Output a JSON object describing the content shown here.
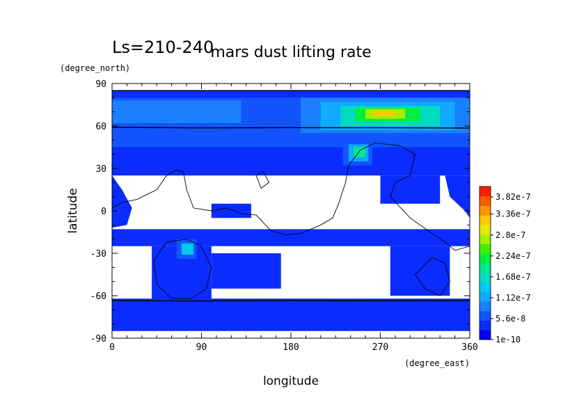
{
  "header": {
    "season": "Ls=210-240",
    "title": "mars dust lifting rate"
  },
  "chart_data": {
    "type": "heatmap",
    "title": "mars dust lifting rate",
    "subtitle": "Ls=210-240",
    "xlabel": "longitude",
    "ylabel": "latitude",
    "x_units": "(degree_east)",
    "y_units": "(degree_north)",
    "xlim": [
      0,
      360
    ],
    "ylim": [
      -90,
      90
    ],
    "x_ticks": [
      0,
      90,
      180,
      270,
      360
    ],
    "y_ticks": [
      -90,
      -60,
      -30,
      0,
      30,
      60,
      90
    ],
    "colorbar": {
      "labels": [
        "1e-10",
        "5.6e-8",
        "1.12e-7",
        "1.68e-7",
        "2.24e-7",
        "2.8e-7",
        "3.36e-7",
        "3.82e-7"
      ],
      "label_values": [
        1e-10,
        5.6e-08,
        1.12e-07,
        1.68e-07,
        2.24e-07,
        2.8e-07,
        3.36e-07,
        3.82e-07
      ],
      "colors": [
        "#0000ff",
        "#0a2cff",
        "#1255ff",
        "#1a80ff",
        "#10aaff",
        "#00c8f0",
        "#00dcc0",
        "#00e890",
        "#00ee40",
        "#44f000",
        "#a0f000",
        "#e8e800",
        "#ffc800",
        "#ff9600",
        "#ff5a00",
        "#ff1e00"
      ],
      "min": 1e-10,
      "max": 4.1e-07
    },
    "regions": [
      {
        "level": 1,
        "polygon": [
          [
            0,
            85
          ],
          [
            360,
            85
          ],
          [
            360,
            25
          ],
          [
            0,
            25
          ]
        ]
      },
      {
        "level": 1,
        "polygon": [
          [
            0,
            -13
          ],
          [
            360,
            -13
          ],
          [
            360,
            -25
          ],
          [
            0,
            -25
          ]
        ]
      },
      {
        "level": 1,
        "polygon": [
          [
            0,
            -62
          ],
          [
            360,
            -62
          ],
          [
            360,
            -85
          ],
          [
            0,
            -85
          ]
        ]
      },
      {
        "level": 1,
        "polygon": [
          [
            0,
            25
          ],
          [
            10,
            15
          ],
          [
            20,
            2
          ],
          [
            15,
            -10
          ],
          [
            0,
            -12
          ]
        ]
      },
      {
        "level": 1,
        "polygon": [
          [
            40,
            -25
          ],
          [
            100,
            -25
          ],
          [
            100,
            -65
          ],
          [
            40,
            -65
          ]
        ]
      },
      {
        "level": 1,
        "polygon": [
          [
            100,
            -30
          ],
          [
            170,
            -30
          ],
          [
            170,
            -55
          ],
          [
            100,
            -55
          ]
        ]
      },
      {
        "level": 1,
        "polygon": [
          [
            280,
            -25
          ],
          [
            340,
            -25
          ],
          [
            340,
            -60
          ],
          [
            280,
            -60
          ]
        ]
      },
      {
        "level": 1,
        "polygon": [
          [
            100,
            5
          ],
          [
            140,
            5
          ],
          [
            140,
            -5
          ],
          [
            100,
            -5
          ]
        ]
      },
      {
        "level": 1,
        "polygon": [
          [
            270,
            25
          ],
          [
            330,
            25
          ],
          [
            330,
            5
          ],
          [
            270,
            5
          ]
        ]
      },
      {
        "level": 1,
        "polygon": [
          [
            360,
            25
          ],
          [
            335,
            25
          ],
          [
            340,
            10
          ],
          [
            355,
            0
          ],
          [
            360,
            -5
          ]
        ]
      },
      {
        "level": 2,
        "polygon": [
          [
            0,
            80
          ],
          [
            360,
            80
          ],
          [
            360,
            45
          ],
          [
            0,
            45
          ]
        ]
      },
      {
        "level": 3,
        "polygon": [
          [
            0,
            78
          ],
          [
            130,
            78
          ],
          [
            130,
            62
          ],
          [
            0,
            62
          ]
        ]
      },
      {
        "level": 3,
        "polygon": [
          [
            190,
            80
          ],
          [
            360,
            80
          ],
          [
            360,
            55
          ],
          [
            190,
            55
          ]
        ]
      },
      {
        "level": 4,
        "polygon": [
          [
            210,
            77
          ],
          [
            345,
            77
          ],
          [
            345,
            57
          ],
          [
            210,
            57
          ]
        ]
      },
      {
        "level": 6,
        "polygon": [
          [
            230,
            74
          ],
          [
            330,
            74
          ],
          [
            330,
            60
          ],
          [
            230,
            60
          ]
        ]
      },
      {
        "level": 8,
        "polygon": [
          [
            245,
            73
          ],
          [
            310,
            73
          ],
          [
            310,
            63
          ],
          [
            245,
            63
          ]
        ]
      },
      {
        "level": 10,
        "polygon": [
          [
            255,
            72
          ],
          [
            295,
            72
          ],
          [
            295,
            65
          ],
          [
            255,
            65
          ]
        ]
      },
      {
        "level": 12,
        "polygon": [
          [
            262,
            71
          ],
          [
            285,
            71
          ],
          [
            285,
            67
          ],
          [
            262,
            67
          ]
        ]
      },
      {
        "level": 2,
        "polygon": [
          [
            232,
            50
          ],
          [
            262,
            50
          ],
          [
            262,
            32
          ],
          [
            232,
            32
          ]
        ]
      },
      {
        "level": 4,
        "polygon": [
          [
            238,
            47
          ],
          [
            258,
            47
          ],
          [
            258,
            35
          ],
          [
            238,
            35
          ]
        ]
      },
      {
        "level": 7,
        "polygon": [
          [
            243,
            45
          ],
          [
            255,
            45
          ],
          [
            255,
            38
          ],
          [
            243,
            38
          ]
        ]
      },
      {
        "level": 2,
        "polygon": [
          [
            65,
            -20
          ],
          [
            85,
            -20
          ],
          [
            85,
            -34
          ],
          [
            65,
            -34
          ]
        ]
      },
      {
        "level": 5,
        "polygon": [
          [
            70,
            -23
          ],
          [
            82,
            -23
          ],
          [
            82,
            -31
          ],
          [
            70,
            -31
          ]
        ]
      }
    ],
    "contours": [
      {
        "points": [
          [
            0,
            59
          ],
          [
            90,
            58.6
          ],
          [
            180,
            58.8
          ],
          [
            270,
            58.7
          ],
          [
            360,
            58.5
          ]
        ]
      },
      {
        "points": [
          [
            0,
            -63.5
          ],
          [
            90,
            -63.7
          ],
          [
            180,
            -63.5
          ],
          [
            270,
            -63.6
          ],
          [
            360,
            -63.5
          ]
        ]
      },
      {
        "points": [
          [
            0,
            85
          ],
          [
            360,
            85
          ]
        ]
      },
      {
        "points": [
          [
            0,
            2
          ],
          [
            10,
            6
          ],
          [
            25,
            8
          ],
          [
            45,
            15
          ],
          [
            55,
            25
          ],
          [
            65,
            29
          ],
          [
            72,
            27
          ],
          [
            75,
            15
          ],
          [
            82,
            2
          ],
          [
            100,
            0
          ],
          [
            115,
            2
          ],
          [
            130,
            -2
          ],
          [
            145,
            -3
          ],
          [
            160,
            -14
          ],
          [
            175,
            -17
          ],
          [
            190,
            -16
          ],
          [
            210,
            -10
          ],
          [
            222,
            -5
          ],
          [
            228,
            5
          ],
          [
            235,
            20
          ],
          [
            238,
            32
          ],
          [
            250,
            43
          ],
          [
            265,
            48
          ],
          [
            290,
            46
          ],
          [
            305,
            40
          ],
          [
            300,
            25
          ],
          [
            285,
            20
          ],
          [
            280,
            10
          ],
          [
            300,
            -5
          ],
          [
            320,
            -15
          ],
          [
            335,
            -22
          ],
          [
            345,
            -28
          ],
          [
            360,
            -25
          ]
        ]
      },
      {
        "points": [
          [
            75,
            -20
          ],
          [
            90,
            -25
          ],
          [
            100,
            -40
          ],
          [
            95,
            -55
          ],
          [
            80,
            -62
          ],
          [
            60,
            -62
          ],
          [
            45,
            -52
          ],
          [
            42,
            -35
          ],
          [
            55,
            -22
          ],
          [
            75,
            -20
          ]
        ]
      },
      {
        "points": [
          [
            305,
            -45
          ],
          [
            315,
            -55
          ],
          [
            330,
            -60
          ],
          [
            340,
            -50
          ],
          [
            335,
            -37
          ],
          [
            322,
            -33
          ],
          [
            305,
            -45
          ]
        ]
      },
      {
        "points": [
          [
            145,
            25
          ],
          [
            152,
            28
          ],
          [
            158,
            20
          ],
          [
            150,
            16
          ],
          [
            145,
            25
          ]
        ]
      }
    ]
  }
}
